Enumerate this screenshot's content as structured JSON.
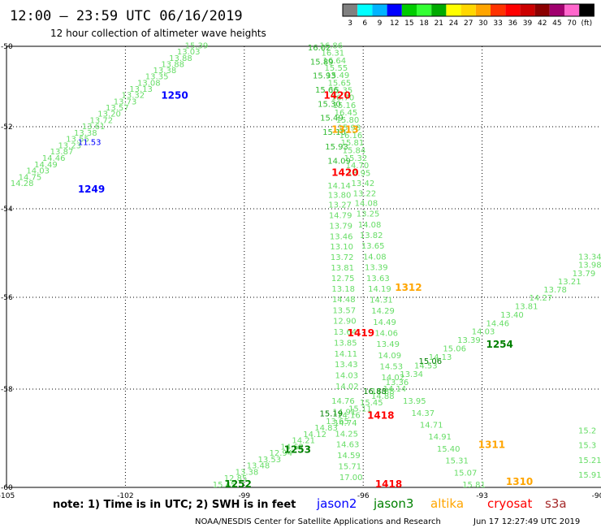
{
  "header": {
    "title": "12:00 – 23:59 UTC 06/16/2019",
    "subtitle": "12 hour collection of altimeter wave heights"
  },
  "colorbar": {
    "colors": [
      "#808080",
      "#00ffff",
      "#00b4ff",
      "#0000ff",
      "#00cc00",
      "#33ff33",
      "#00aa00",
      "#ffff00",
      "#ffd700",
      "#ffa500",
      "#ff3300",
      "#ff0000",
      "#cc0000",
      "#8b0000",
      "#a0006e",
      "#ff66cc",
      "#000000"
    ],
    "labels": [
      "3",
      "6",
      "9",
      "12",
      "15",
      "18",
      "21",
      "24",
      "27",
      "30",
      "33",
      "36",
      "39",
      "42",
      "45",
      "70",
      "(ft)"
    ]
  },
  "map": {
    "lon_ticks": [
      "-105",
      "-102",
      "-99",
      "-96",
      "-93",
      "-90"
    ],
    "lat_ticks": [
      "-50",
      "-52",
      "-54",
      "-56",
      "-58",
      "-60"
    ]
  },
  "pass_labels": [
    {
      "text": "1250",
      "color": "#0000ff",
      "lon": -101.1,
      "lat": -51.3
    },
    {
      "text": "1249",
      "color": "#0000ff",
      "lon": -103.2,
      "lat": -53.6
    },
    {
      "text": "1420",
      "color": "#ff0000",
      "lon": -97.0,
      "lat": -51.3
    },
    {
      "text": "1313",
      "color": "#ffa500",
      "lon": -96.8,
      "lat": -52.15
    },
    {
      "text": "1420",
      "color": "#ff0000",
      "lon": -96.8,
      "lat": -53.2
    },
    {
      "text": "1312",
      "color": "#ffa500",
      "lon": -95.2,
      "lat": -55.85
    },
    {
      "text": "1419",
      "color": "#ff0000",
      "lon": -96.4,
      "lat": -56.85
    },
    {
      "text": "1254",
      "color": "#008000",
      "lon": -92.9,
      "lat": -57.1
    },
    {
      "text": "15.06",
      "color": "#008000",
      "lon": -94.6,
      "lat": -57.45
    },
    {
      "text": "15.19",
      "color": "#008000",
      "lon": -97.1,
      "lat": -58.55
    },
    {
      "text": "16.88",
      "color": "#008000",
      "lon": -96.0,
      "lat": -58.1
    },
    {
      "text": "1418",
      "color": "#ff0000",
      "lon": -95.9,
      "lat": -58.6
    },
    {
      "text": "1253",
      "color": "#008000",
      "lon": -98.0,
      "lat": -59.3
    },
    {
      "text": "1311",
      "color": "#ffa500",
      "lon": -93.1,
      "lat": -59.2
    },
    {
      "text": "1252",
      "color": "#008000",
      "lon": -99.5,
      "lat": -60.05
    },
    {
      "text": "1418",
      "color": "#ff0000",
      "lon": -95.7,
      "lat": -60.0
    },
    {
      "text": "1310",
      "color": "#ffa500",
      "lon": -92.4,
      "lat": -59.95
    },
    {
      "text": "11.53",
      "color": "#0000ff",
      "lon": -103.2,
      "lat": -52.45
    }
  ],
  "tracks": [
    {
      "name": "pass-1249",
      "color": "#66dd66",
      "lon0": -104.9,
      "lat0": -53.45,
      "lon1": -100.5,
      "lat1": -50.05,
      "values": [
        "14.28",
        "14.75",
        "14.03",
        "14.49",
        "14.46",
        "13.87",
        "13.23",
        "13.55",
        "13.38",
        "13.61",
        "13.72",
        "13.20",
        "13.57",
        "13.73",
        "13.32",
        "13.13",
        "13.08",
        "13.35",
        "13.38",
        "13.88",
        "13.88",
        "13.03",
        "15.39"
      ]
    },
    {
      "name": "pass-1420",
      "color": "#66dd66",
      "lon0": -97.1,
      "lat0": -50.05,
      "lon1": -96.4,
      "lat1": -53.2,
      "values": [
        "16.86",
        "16.31",
        "16.64",
        "15.55",
        "15.49",
        "15.65",
        "15.35",
        "16.70",
        "15.16",
        "16.45",
        "15.80",
        "15.98",
        "16.16",
        "15.81",
        "15.84",
        "15.32",
        "14.70",
        "13.95"
      ]
    },
    {
      "name": "pass-1420-b",
      "color": "#33bb33",
      "lon0": -97.4,
      "lat0": -50.1,
      "lon1": -96.9,
      "lat1": -52.9,
      "values": [
        "16.02",
        "15.89",
        "15.93",
        "15.66",
        "15.30",
        "15.49",
        "15.10",
        "15.93",
        "14.09"
      ]
    },
    {
      "name": "pass-1312",
      "color": "#66dd66",
      "lon0": -96.3,
      "lat0": -53.45,
      "lon1": -95.5,
      "lat1": -58.05,
      "values": [
        "13.42",
        "13.22",
        "14.08",
        "13.25",
        "14.08",
        "13.82",
        "13.65",
        "14.08",
        "13.39",
        "13.63",
        "14.19",
        "14.31",
        "14.29",
        "14.49",
        "14.06",
        "13.49",
        "14.09",
        "14.53",
        "14.02",
        "14.14"
      ]
    },
    {
      "name": "pass-1419",
      "color": "#66dd66",
      "lon0": -96.9,
      "lat0": -53.5,
      "lon1": -96.7,
      "lat1": -58.0,
      "values": [
        "14.14",
        "13.80",
        "13.27",
        "14.79",
        "13.79",
        "13.46",
        "13.10",
        "13.72",
        "13.81",
        "12.75",
        "13.18",
        "14.48",
        "13.57",
        "12.90",
        "13.64",
        "13.85",
        "14.11",
        "13.43",
        "14.03",
        "14.02"
      ]
    },
    {
      "name": "pass-1254",
      "color": "#66dd66",
      "lon0": -95.8,
      "lat0": -58.1,
      "lon1": -90.0,
      "lat1": -55.15,
      "values": [
        "14.88",
        "13.36",
        "13.34",
        "14.53",
        "14.13",
        "15.06",
        "13.39",
        "14.03",
        "14.46",
        "13.40",
        "13.81",
        "14.27",
        "13.78",
        "13.21",
        "13.79",
        "13.98",
        "13.34"
      ]
    },
    {
      "name": "pass-1253",
      "color": "#66dd66",
      "lon0": -99.8,
      "lat0": -60.0,
      "lon1": -95.8,
      "lat1": -58.2,
      "values": [
        "15.45",
        "12.85",
        "13.38",
        "13.48",
        "13.53",
        "12.94",
        "14.62",
        "14.21",
        "14.12",
        "14.83",
        "13.65",
        "14.16",
        "15.11",
        "15.45",
        "14.88"
      ]
    },
    {
      "name": "pass-1418",
      "color": "#66dd66",
      "lon0": -96.8,
      "lat0": -58.3,
      "lon1": -96.6,
      "lat1": -59.85,
      "values": [
        "14.76",
        "14.91",
        "14.74",
        "14.25",
        "14.63",
        "14.59",
        "15.71",
        "17.00"
      ]
    },
    {
      "name": "pass-1311",
      "color": "#66dd66",
      "lon0": -95.0,
      "lat0": -58.3,
      "lon1": -93.5,
      "lat1": -60.0,
      "values": [
        "13.95",
        "14.37",
        "14.71",
        "14.91",
        "15.40",
        "15.31",
        "15.07",
        "15.81"
      ]
    },
    {
      "name": "pass-edge",
      "color": "#66dd66",
      "lon0": -90.1,
      "lat0": -58.9,
      "lon1": -90.1,
      "lat1": -59.8,
      "values": [
        "15.2",
        "15.3",
        "15.21",
        "15.91"
      ]
    }
  ],
  "footer": {
    "note": "note: 1) Time is in UTC; 2) SWH is in feet",
    "sat_jason2": "jason2",
    "sat_jason3": "jason3",
    "sat_altika": "altika",
    "sat_cryosat": "cryosat",
    "sat_s3a": "s3a",
    "credit": "NOAA/NESDIS Center for Satellite Applications and Research",
    "timestamp": "Jun 17 12:27:49 UTC 2019"
  },
  "colors": {
    "jason2": "#0000ff",
    "jason3": "#008000",
    "altika": "#ffa500",
    "cryosat": "#ff0000",
    "s3a": "#a52a2a"
  }
}
